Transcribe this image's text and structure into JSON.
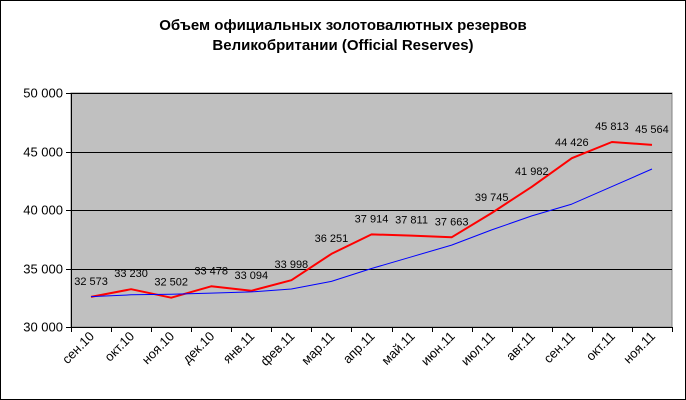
{
  "chart_data": {
    "type": "line",
    "title_line1": "Объем официальных золотовалютных резервов",
    "title_line2": "Великобритании (Official Reserves)",
    "categories": [
      "сен.10",
      "окт.10",
      "ноя.10",
      "дек.10",
      "янв.11",
      "фев.11",
      "мар.11",
      "апр.11",
      "май.11",
      "июн.11",
      "июл.11",
      "авг.11",
      "сен.11",
      "окт.11",
      "ноя.11"
    ],
    "ylim": [
      30000,
      50000
    ],
    "y_ticks": [
      30000,
      35000,
      40000,
      45000,
      50000
    ],
    "y_tick_labels": [
      "30 000",
      "35 000",
      "40 000",
      "45 000",
      "50 000"
    ],
    "grid": true,
    "plot_background": "#c0c0c0",
    "series": [
      {
        "color": "#ff0000",
        "values": [
          32573,
          33230,
          32502,
          33478,
          33094,
          33998,
          36251,
          37914,
          37811,
          37663,
          39745,
          41982,
          44426,
          45813,
          45564
        ],
        "labels": [
          "32 573",
          "33 230",
          "32 502",
          "33 478",
          "33 094",
          "33 998",
          "36 251",
          "37 914",
          "37 811",
          "37 663",
          "39 745",
          "41 982",
          "44 426",
          "45 813",
          "45 564"
        ]
      },
      {
        "color": "#0000ff",
        "type": "trendline",
        "values": [
          32600,
          32750,
          32800,
          32900,
          33000,
          33250,
          33900,
          35000,
          36000,
          37000,
          38300,
          39500,
          40500,
          42000,
          43500
        ]
      }
    ]
  }
}
